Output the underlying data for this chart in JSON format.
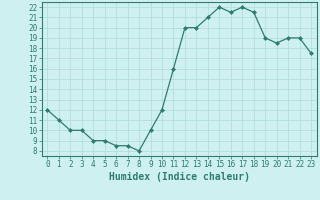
{
  "x": [
    0,
    1,
    2,
    3,
    4,
    5,
    6,
    7,
    8,
    9,
    10,
    11,
    12,
    13,
    14,
    15,
    16,
    17,
    18,
    19,
    20,
    21,
    22,
    23
  ],
  "y": [
    12,
    11,
    10,
    10,
    9,
    9,
    8.5,
    8.5,
    8,
    10,
    12,
    16,
    20,
    20,
    21,
    22,
    21.5,
    22,
    21.5,
    19,
    18.5,
    19,
    19,
    17.5
  ],
  "line_color": "#2e7d6e",
  "marker": "D",
  "marker_size": 2,
  "bg_color": "#cff0f0",
  "grid_color": "#b0dada",
  "xlabel": "Humidex (Indice chaleur)",
  "xlim": [
    -0.5,
    23.5
  ],
  "ylim": [
    7.5,
    22.5
  ],
  "yticks": [
    8,
    9,
    10,
    11,
    12,
    13,
    14,
    15,
    16,
    17,
    18,
    19,
    20,
    21,
    22
  ],
  "xticks": [
    0,
    1,
    2,
    3,
    4,
    5,
    6,
    7,
    8,
    9,
    10,
    11,
    12,
    13,
    14,
    15,
    16,
    17,
    18,
    19,
    20,
    21,
    22,
    23
  ],
  "tick_label_fontsize": 5.5,
  "xlabel_fontsize": 7.0,
  "axis_color": "#2e7d6e"
}
